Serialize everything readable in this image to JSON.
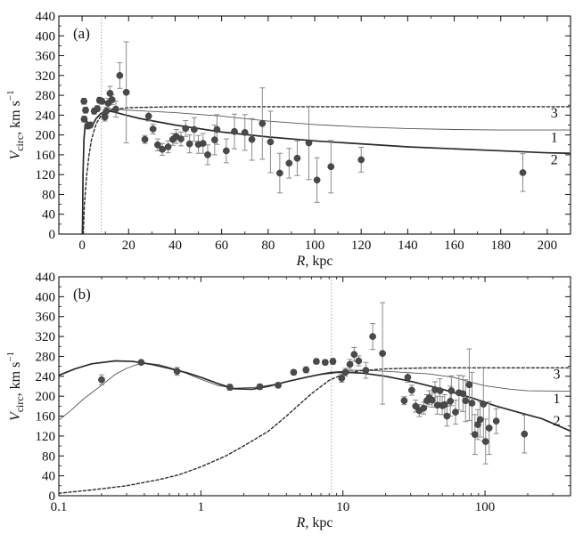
{
  "chart_data": [
    {
      "type": "scatter",
      "panel_label": "(a)",
      "xscale": "linear",
      "xlim": [
        -10,
        210
      ],
      "ylim": [
        0,
        440
      ],
      "xticks": [
        0,
        20,
        40,
        60,
        80,
        100,
        120,
        140,
        160,
        180,
        200
      ],
      "yticks": [
        0,
        40,
        80,
        120,
        160,
        200,
        240,
        280,
        320,
        360,
        400,
        440
      ],
      "xlabel_symbol": "R",
      "xlabel_unit": ", kpc",
      "ylabel_main": "V",
      "ylabel_sub": "circ",
      "ylabel_unit": ", km s",
      "ylabel_exp": "−1",
      "vline_x": 8.3,
      "curve_labels": [
        {
          "text": "3",
          "x": 203,
          "y": 244
        },
        {
          "text": "1",
          "x": 203,
          "y": 195
        },
        {
          "text": "2",
          "x": 203,
          "y": 150
        }
      ],
      "series": [
        {
          "name": "1",
          "style": "thin-solid",
          "points": [
            [
              0.15,
              0
            ],
            [
              0.4,
              120
            ],
            [
              0.8,
              190
            ],
            [
              1.3,
              220
            ],
            [
              2,
              228
            ],
            [
              3,
              222
            ],
            [
              4,
              220
            ],
            [
              5,
              224
            ],
            [
              6,
              233
            ],
            [
              8,
              243
            ],
            [
              10,
              250
            ],
            [
              12,
              252
            ],
            [
              14,
              252
            ],
            [
              20,
              250
            ],
            [
              40,
              245
            ],
            [
              60,
              238
            ],
            [
              80,
              228
            ],
            [
              100,
              221
            ],
            [
              120,
              216
            ],
            [
              140,
              213
            ],
            [
              160,
              211
            ],
            [
              180,
              210
            ],
            [
              200,
              210
            ],
            [
              210,
              210
            ]
          ]
        },
        {
          "name": "2",
          "style": "thick-solid",
          "points": [
            [
              0.15,
              0
            ],
            [
              0.4,
              120
            ],
            [
              0.8,
              190
            ],
            [
              1.3,
              220
            ],
            [
              2,
              228
            ],
            [
              3,
              222
            ],
            [
              4,
              220
            ],
            [
              5,
              224
            ],
            [
              6,
              233
            ],
            [
              8,
              243
            ],
            [
              10,
              248
            ],
            [
              12,
              248
            ],
            [
              14,
              246
            ],
            [
              18,
              241
            ],
            [
              25,
              233
            ],
            [
              40,
              220
            ],
            [
              60,
              206
            ],
            [
              80,
              196
            ],
            [
              100,
              188
            ],
            [
              120,
              182
            ],
            [
              140,
              176
            ],
            [
              160,
              172
            ],
            [
              180,
              168
            ],
            [
              200,
              164
            ],
            [
              210,
              163
            ]
          ]
        },
        {
          "name": "3",
          "style": "dashed",
          "points": [
            [
              0.5,
              0
            ],
            [
              1,
              60
            ],
            [
              2,
              120
            ],
            [
              3,
              160
            ],
            [
              4,
              190
            ],
            [
              6,
              222
            ],
            [
              8,
              238
            ],
            [
              10,
              246
            ],
            [
              14,
              252
            ],
            [
              20,
              255
            ],
            [
              40,
              257
            ],
            [
              100,
              257
            ],
            [
              210,
              257
            ]
          ]
        }
      ],
      "points": [
        {
          "x": 0.8,
          "y": 268,
          "err": 6
        },
        {
          "x": 0.9,
          "y": 232,
          "err": 6
        },
        {
          "x": 1.5,
          "y": 250,
          "err": 6
        },
        {
          "x": 2.4,
          "y": 218,
          "err": 6
        },
        {
          "x": 3.5,
          "y": 220,
          "err": 6
        },
        {
          "x": 5.2,
          "y": 248,
          "err": 6
        },
        {
          "x": 6.5,
          "y": 253,
          "err": 6
        },
        {
          "x": 7.5,
          "y": 270,
          "err": 6
        },
        {
          "x": 8.5,
          "y": 268,
          "err": 6
        },
        {
          "x": 9.8,
          "y": 236,
          "err": 8
        },
        {
          "x": 10.4,
          "y": 248,
          "err": 8
        },
        {
          "x": 11.2,
          "y": 264,
          "err": 10
        },
        {
          "x": 12,
          "y": 284,
          "err": 14
        },
        {
          "x": 12.9,
          "y": 271,
          "err": 10
        },
        {
          "x": 14.5,
          "y": 252,
          "err": 16
        },
        {
          "x": 16.2,
          "y": 320,
          "err": 26
        },
        {
          "x": 19,
          "y": 286,
          "err": 102
        },
        {
          "x": 27,
          "y": 191,
          "err": 8
        },
        {
          "x": 28.6,
          "y": 238,
          "err": 10
        },
        {
          "x": 30.5,
          "y": 212,
          "err": 10
        },
        {
          "x": 32.5,
          "y": 180,
          "err": 12
        },
        {
          "x": 34.5,
          "y": 171,
          "err": 12
        },
        {
          "x": 37,
          "y": 176,
          "err": 12
        },
        {
          "x": 39,
          "y": 191,
          "err": 12
        },
        {
          "x": 40.5,
          "y": 197,
          "err": 14
        },
        {
          "x": 42.5,
          "y": 192,
          "err": 14
        },
        {
          "x": 44.5,
          "y": 213,
          "err": 16
        },
        {
          "x": 46.2,
          "y": 182,
          "err": 18
        },
        {
          "x": 48.2,
          "y": 211,
          "err": 24
        },
        {
          "x": 50,
          "y": 181,
          "err": 18
        },
        {
          "x": 52,
          "y": 183,
          "err": 20
        },
        {
          "x": 54,
          "y": 160,
          "err": 20
        },
        {
          "x": 57,
          "y": 190,
          "err": 30
        },
        {
          "x": 58,
          "y": 211,
          "err": 30
        },
        {
          "x": 62,
          "y": 168,
          "err": 24
        },
        {
          "x": 65.5,
          "y": 207,
          "err": 35
        },
        {
          "x": 70,
          "y": 205,
          "err": 36
        },
        {
          "x": 73,
          "y": 191,
          "err": 42
        },
        {
          "x": 77.5,
          "y": 223,
          "err": 72
        },
        {
          "x": 81,
          "y": 186,
          "err": 62
        },
        {
          "x": 85,
          "y": 123,
          "err": 40
        },
        {
          "x": 89,
          "y": 143,
          "err": 30
        },
        {
          "x": 92.5,
          "y": 153,
          "err": 35
        },
        {
          "x": 97.5,
          "y": 184,
          "err": 74
        },
        {
          "x": 101,
          "y": 109,
          "err": 45
        },
        {
          "x": 107,
          "y": 136,
          "err": 53
        },
        {
          "x": 120,
          "y": 150,
          "err": 25
        },
        {
          "x": 189.5,
          "y": 124,
          "err": 38
        }
      ]
    },
    {
      "type": "scatter",
      "panel_label": "(b)",
      "xscale": "log",
      "xlim": [
        0.1,
        400
      ],
      "ylim": [
        0,
        440
      ],
      "xticks": [
        0.1,
        1,
        10,
        100
      ],
      "xticklabels": [
        "0.1",
        "1",
        "10",
        "100"
      ],
      "yticks": [
        0,
        40,
        80,
        120,
        160,
        200,
        240,
        280,
        320,
        360,
        400,
        440
      ],
      "xlabel_symbol": "R",
      "xlabel_unit": ", kpc",
      "ylabel_main": "V",
      "ylabel_sub": "circ",
      "ylabel_unit": ", km s",
      "ylabel_exp": "−1",
      "vline_x": 8.3,
      "curve_labels": [
        {
          "text": "3",
          "x": 320,
          "y": 244
        },
        {
          "text": "1",
          "x": 320,
          "y": 195
        },
        {
          "text": "2",
          "x": 320,
          "y": 150
        }
      ],
      "series": [
        {
          "name": "1",
          "style": "thin-solid",
          "points": [
            [
              0.1,
              152
            ],
            [
              0.12,
              170
            ],
            [
              0.15,
              195
            ],
            [
              0.2,
              222
            ],
            [
              0.25,
              244
            ],
            [
              0.3,
              256
            ],
            [
              0.35,
              263
            ],
            [
              0.4,
              266
            ],
            [
              0.5,
              264
            ],
            [
              0.7,
              252
            ],
            [
              1,
              234
            ],
            [
              1.3,
              222
            ],
            [
              1.7,
              216
            ],
            [
              2.5,
              218
            ],
            [
              3.5,
              225
            ],
            [
              5,
              236
            ],
            [
              6.5,
              243
            ],
            [
              8,
              248
            ],
            [
              10,
              250
            ],
            [
              12,
              252
            ],
            [
              15,
              252
            ],
            [
              20,
              250
            ],
            [
              40,
              245
            ],
            [
              60,
              238
            ],
            [
              80,
              228
            ],
            [
              100,
              221
            ],
            [
              150,
              214
            ],
            [
              200,
              211
            ],
            [
              400,
              210
            ]
          ]
        },
        {
          "name": "2",
          "style": "thick-solid",
          "points": [
            [
              0.1,
              242
            ],
            [
              0.13,
              255
            ],
            [
              0.17,
              265
            ],
            [
              0.25,
              271
            ],
            [
              0.33,
              270
            ],
            [
              0.45,
              264
            ],
            [
              0.6,
              256
            ],
            [
              0.8,
              247
            ],
            [
              1,
              238
            ],
            [
              1.3,
              226
            ],
            [
              1.7,
              215
            ],
            [
              2.3,
              214
            ],
            [
              3,
              220
            ],
            [
              4,
              229
            ],
            [
              5.5,
              238
            ],
            [
              7,
              244
            ],
            [
              9,
              248
            ],
            [
              11,
              248
            ],
            [
              14,
              246
            ],
            [
              20,
              240
            ],
            [
              30,
              230
            ],
            [
              50,
              214
            ],
            [
              80,
              197
            ],
            [
              120,
              180
            ],
            [
              180,
              166
            ],
            [
              250,
              155
            ],
            [
              400,
              130
            ]
          ]
        },
        {
          "name": "3",
          "style": "dashed",
          "points": [
            [
              0.1,
              5
            ],
            [
              0.15,
              10
            ],
            [
              0.2,
              14
            ],
            [
              0.3,
              20
            ],
            [
              0.5,
              32
            ],
            [
              0.7,
              42
            ],
            [
              1,
              58
            ],
            [
              1.5,
              80
            ],
            [
              2,
              100
            ],
            [
              3,
              130
            ],
            [
              4,
              160
            ],
            [
              5,
              185
            ],
            [
              6,
              205
            ],
            [
              8,
              232
            ],
            [
              10,
              244
            ],
            [
              13,
              251
            ],
            [
              20,
              255
            ],
            [
              40,
              257
            ],
            [
              100,
              257
            ],
            [
              400,
              257
            ]
          ]
        }
      ],
      "points": [
        {
          "x": 0.2,
          "y": 233,
          "err": 10
        },
        {
          "x": 0.38,
          "y": 268,
          "err": 4
        },
        {
          "x": 0.68,
          "y": 250,
          "err": 8
        },
        {
          "x": 1.6,
          "y": 218,
          "err": 6
        },
        {
          "x": 2.6,
          "y": 219,
          "err": 5
        },
        {
          "x": 3.5,
          "y": 222,
          "err": 5
        },
        {
          "x": 4.5,
          "y": 248,
          "err": 5
        },
        {
          "x": 5.5,
          "y": 253,
          "err": 6
        },
        {
          "x": 6.5,
          "y": 270,
          "err": 5
        },
        {
          "x": 7.5,
          "y": 268,
          "err": 5
        },
        {
          "x": 8.5,
          "y": 270,
          "err": 6
        },
        {
          "x": 9.8,
          "y": 236,
          "err": 8
        },
        {
          "x": 10.4,
          "y": 248,
          "err": 8
        },
        {
          "x": 11.2,
          "y": 264,
          "err": 10
        },
        {
          "x": 12,
          "y": 284,
          "err": 14
        },
        {
          "x": 12.9,
          "y": 271,
          "err": 10
        },
        {
          "x": 14.5,
          "y": 252,
          "err": 16
        },
        {
          "x": 16.2,
          "y": 320,
          "err": 26
        },
        {
          "x": 19,
          "y": 286,
          "err": 102
        },
        {
          "x": 27,
          "y": 191,
          "err": 8
        },
        {
          "x": 28.6,
          "y": 238,
          "err": 10
        },
        {
          "x": 30.5,
          "y": 212,
          "err": 10
        },
        {
          "x": 32.5,
          "y": 180,
          "err": 12
        },
        {
          "x": 34.5,
          "y": 171,
          "err": 12
        },
        {
          "x": 37,
          "y": 176,
          "err": 12
        },
        {
          "x": 39,
          "y": 191,
          "err": 12
        },
        {
          "x": 40.5,
          "y": 197,
          "err": 14
        },
        {
          "x": 42.5,
          "y": 192,
          "err": 14
        },
        {
          "x": 44.5,
          "y": 213,
          "err": 16
        },
        {
          "x": 46.2,
          "y": 182,
          "err": 18
        },
        {
          "x": 48.2,
          "y": 211,
          "err": 24
        },
        {
          "x": 50,
          "y": 181,
          "err": 18
        },
        {
          "x": 52,
          "y": 183,
          "err": 20
        },
        {
          "x": 54,
          "y": 160,
          "err": 20
        },
        {
          "x": 57,
          "y": 190,
          "err": 30
        },
        {
          "x": 58,
          "y": 211,
          "err": 30
        },
        {
          "x": 62,
          "y": 168,
          "err": 24
        },
        {
          "x": 65.5,
          "y": 207,
          "err": 35
        },
        {
          "x": 70,
          "y": 205,
          "err": 36
        },
        {
          "x": 73,
          "y": 191,
          "err": 42
        },
        {
          "x": 77.5,
          "y": 223,
          "err": 72
        },
        {
          "x": 81,
          "y": 186,
          "err": 62
        },
        {
          "x": 85,
          "y": 123,
          "err": 40
        },
        {
          "x": 89,
          "y": 143,
          "err": 30
        },
        {
          "x": 92.5,
          "y": 153,
          "err": 35
        },
        {
          "x": 97.5,
          "y": 184,
          "err": 74
        },
        {
          "x": 101,
          "y": 109,
          "err": 45
        },
        {
          "x": 107,
          "y": 136,
          "err": 53
        },
        {
          "x": 120,
          "y": 150,
          "err": 25
        },
        {
          "x": 189.5,
          "y": 124,
          "err": 38
        }
      ]
    }
  ],
  "colors": {
    "axis": "#111111",
    "curve": "#2a2a2a",
    "thin_curve": "#555555",
    "marker": "#4a4a4a",
    "errorbar": "#8a8a8a",
    "vline": "#9a9a9a"
  }
}
